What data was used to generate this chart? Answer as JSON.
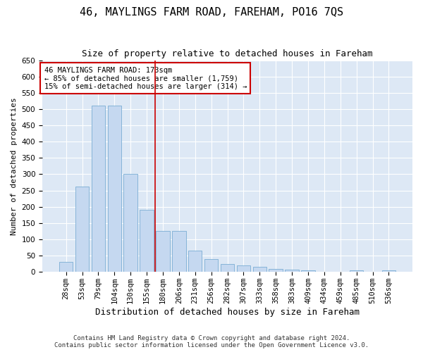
{
  "title": "46, MAYLINGS FARM ROAD, FAREHAM, PO16 7QS",
  "subtitle": "Size of property relative to detached houses in Fareham",
  "xlabel": "Distribution of detached houses by size in Fareham",
  "ylabel": "Number of detached properties",
  "footer_line1": "Contains HM Land Registry data © Crown copyright and database right 2024.",
  "footer_line2": "Contains public sector information licensed under the Open Government Licence v3.0.",
  "categories": [
    "28sqm",
    "53sqm",
    "79sqm",
    "104sqm",
    "130sqm",
    "155sqm",
    "180sqm",
    "206sqm",
    "231sqm",
    "256sqm",
    "282sqm",
    "307sqm",
    "333sqm",
    "358sqm",
    "383sqm",
    "409sqm",
    "434sqm",
    "459sqm",
    "485sqm",
    "510sqm",
    "536sqm"
  ],
  "values": [
    30,
    262,
    510,
    510,
    300,
    190,
    125,
    125,
    65,
    40,
    25,
    20,
    15,
    10,
    8,
    5,
    1,
    0,
    5,
    1,
    5
  ],
  "bar_color": "#c5d8f0",
  "bar_edge_color": "#7aadd4",
  "vline_x": 5.5,
  "vline_color": "#cc0000",
  "annotation_text": "46 MAYLINGS FARM ROAD: 173sqm\n← 85% of detached houses are smaller (1,759)\n15% of semi-detached houses are larger (314) →",
  "annotation_box_color": "#ffffff",
  "annotation_box_edge": "#cc0000",
  "ylim": [
    0,
    650
  ],
  "yticks": [
    0,
    50,
    100,
    150,
    200,
    250,
    300,
    350,
    400,
    450,
    500,
    550,
    600,
    650
  ],
  "bg_color": "#dde8f5",
  "fig_color": "#ffffff",
  "title_fontsize": 11,
  "subtitle_fontsize": 9,
  "ylabel_fontsize": 8,
  "xlabel_fontsize": 9,
  "tick_fontsize": 7.5,
  "annotation_fontsize": 7.5,
  "footer_fontsize": 6.5
}
